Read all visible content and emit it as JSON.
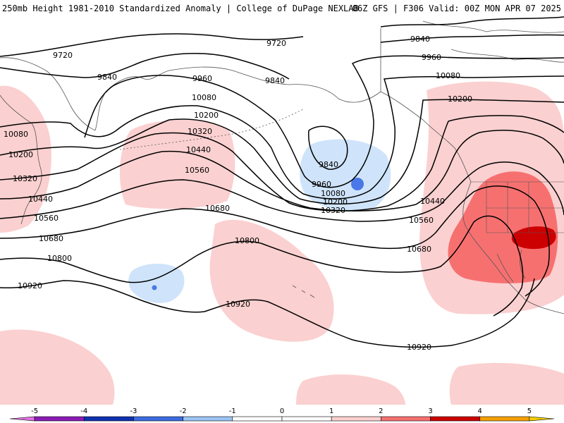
{
  "header": {
    "title_left": "250mb Height 1981-2010 Standardized Anomaly | College of DuPage NEXLAB",
    "title_right": "06Z GFS | F306 Valid: 00Z MON APR 07 2025"
  },
  "colors": {
    "pos1": "#fbd0d0",
    "pos2": "#f77070",
    "pos3": "#cc0000",
    "neg1": "#cfe4fa",
    "neg2": "#4a78e8",
    "contour": "#000000",
    "coast": "#555555"
  },
  "colorbar": {
    "ticks": [
      "-5",
      "-4",
      "-3",
      "-2",
      "-1",
      "0",
      "1",
      "2",
      "3",
      "4",
      "5"
    ],
    "segments": [
      {
        "from": -5.5,
        "to": -5,
        "color": "#e070e0"
      },
      {
        "from": -5,
        "to": -4,
        "color": "#8a1ab5"
      },
      {
        "from": -4,
        "to": -3,
        "color": "#1030b0"
      },
      {
        "from": -3,
        "to": -2,
        "color": "#3d6ce0"
      },
      {
        "from": -2,
        "to": -1,
        "color": "#9cc4f5"
      },
      {
        "from": -1,
        "to": 0,
        "color": "#ffffff"
      },
      {
        "from": 0,
        "to": 1,
        "color": "#ffffff"
      },
      {
        "from": 1,
        "to": 2,
        "color": "#fbd0d0"
      },
      {
        "from": 2,
        "to": 3,
        "color": "#f77070"
      },
      {
        "from": 3,
        "to": 4,
        "color": "#cc0000"
      },
      {
        "from": 4,
        "to": 5,
        "color": "#f5a000"
      },
      {
        "from": 5,
        "to": 5.5,
        "color": "#f5d000"
      }
    ]
  },
  "contour_labels": {
    "c9720a": "9720",
    "c9720b": "9720",
    "c9840a": "9840",
    "c9840b": "9840",
    "c9840c": "9840",
    "c9840d": "9840",
    "c9960a": "9960",
    "c9960b": "9960",
    "c9960c": "9960",
    "c10080a": "10080",
    "c10080b": "10080",
    "c10080c": "10080",
    "c10080d": "10080",
    "c10200a": "10200",
    "c10200b": "10200",
    "c10200c": "10200",
    "c10200d": "10200",
    "c10320a": "10320",
    "c10320b": "10320",
    "c10320c": "10320",
    "c10440a": "10440",
    "c10440b": "10440",
    "c10440c": "10440",
    "c10560a": "10560",
    "c10560b": "10560",
    "c10560c": "10560",
    "c10680a": "10680",
    "c10680b": "10680",
    "c10680c": "10680",
    "c10800a": "10800",
    "c10800b": "10800",
    "c10920a": "10920",
    "c10920b": "10920",
    "c10920c": "10920"
  }
}
